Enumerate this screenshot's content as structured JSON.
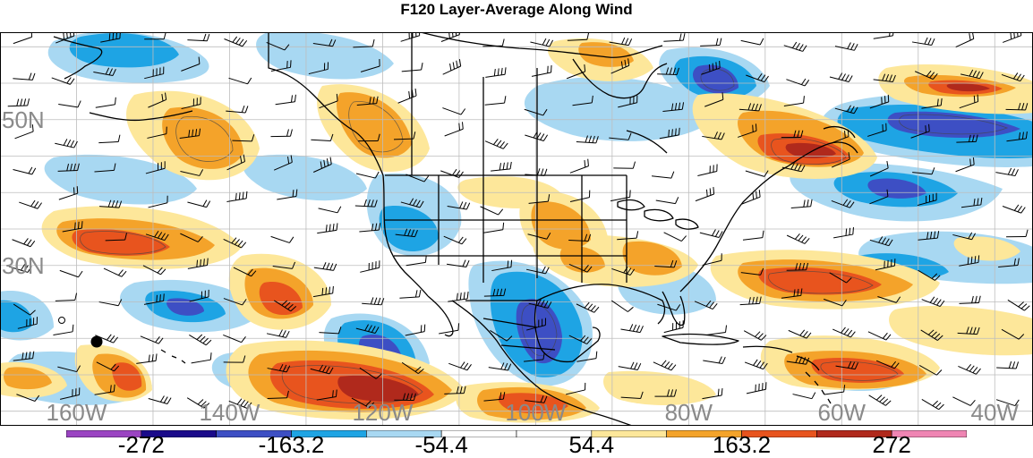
{
  "title": "F120 Layer-Average Along Wind",
  "lat_labels": [
    {
      "text": "50N",
      "lat": 50
    },
    {
      "text": "30N",
      "lat": 30
    }
  ],
  "lon_labels": [
    {
      "text": "160W",
      "lon": -160
    },
    {
      "text": "140W",
      "lon": -140
    },
    {
      "text": "120W",
      "lon": -120
    },
    {
      "text": "100W",
      "lon": -100
    },
    {
      "text": "80W",
      "lon": -80
    },
    {
      "text": "60W",
      "lon": -60
    },
    {
      "text": "40W",
      "lon": -40
    }
  ],
  "colorbar": {
    "colors": [
      "#9a44c2",
      "#1a0a8a",
      "#3d4fc4",
      "#1ea4e4",
      "#a8d8f2",
      "#ffffff",
      "#ffffff",
      "#fde79a",
      "#f4a32a",
      "#e8541e",
      "#b0291c",
      "#ef85b3"
    ],
    "labels": [
      "-272",
      "-163.2",
      "-54.4",
      "54.4",
      "163.2",
      "272"
    ],
    "label_after_box": [
      1,
      3,
      5,
      7,
      9,
      11
    ]
  },
  "palette": {
    "neg_light": "#a8d8f2",
    "neg_mid": "#1ea4e4",
    "neg_dark": "#3d4fc4",
    "pos_light": "#fde79a",
    "pos_mid": "#f4a32a",
    "pos_dark": "#e8541e",
    "pos_deep": "#b0291c"
  },
  "map_extent": {
    "lon_min": -170,
    "lon_max": -35,
    "lat_min": 8,
    "lat_max": 62
  }
}
